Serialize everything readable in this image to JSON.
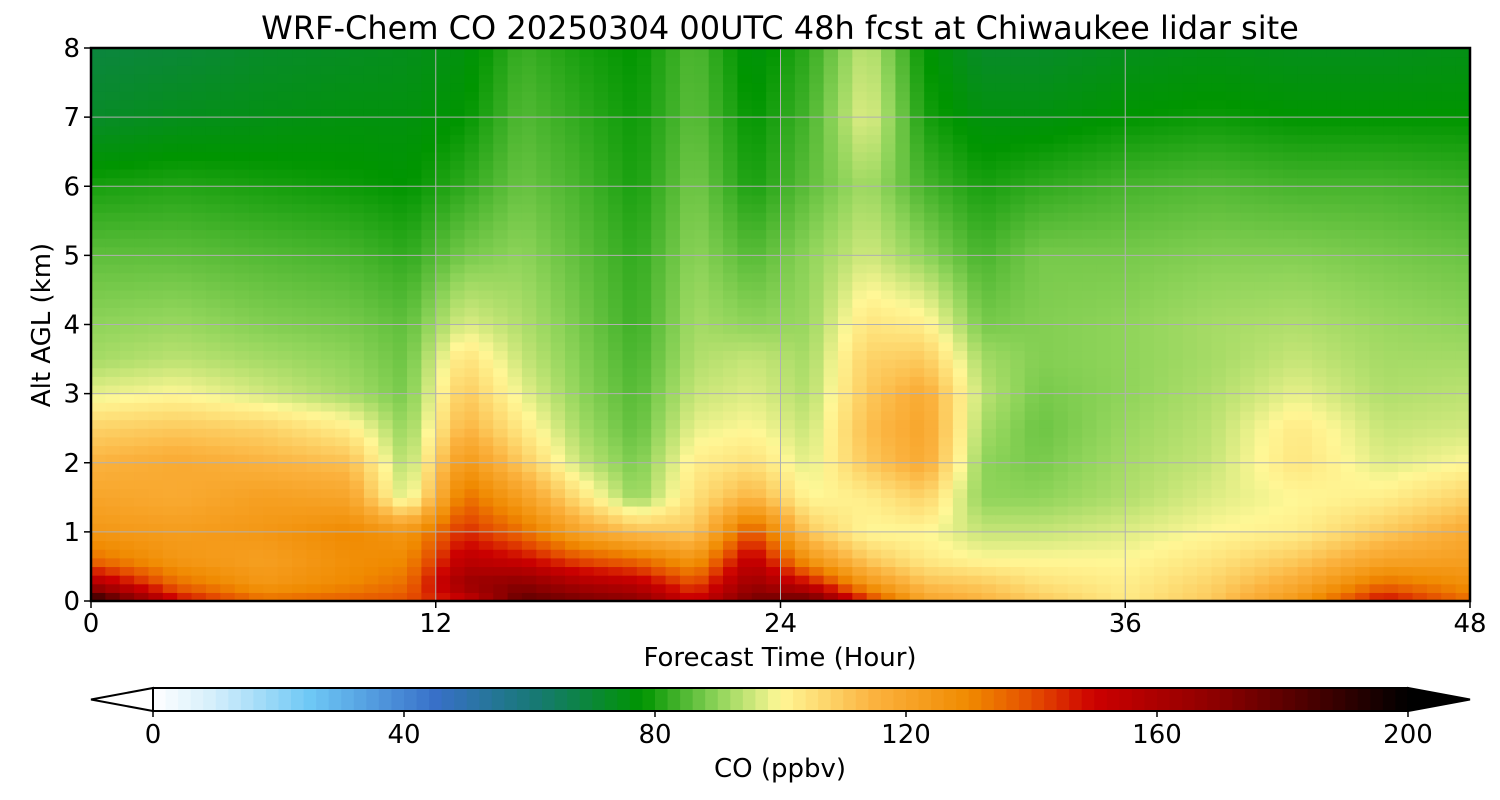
{
  "chart_data": {
    "type": "heatmap",
    "title": "WRF-Chem CO  20250304 00UTC 48h fcst at Chiwaukee lidar site",
    "xlabel": "Forecast Time (Hour)",
    "ylabel": "Alt AGL (km)",
    "xlim": [
      0,
      48
    ],
    "ylim": [
      0,
      8
    ],
    "xticks": [
      "0",
      "12",
      "24",
      "36",
      "48"
    ],
    "yticks": [
      "0",
      "1",
      "2",
      "3",
      "4",
      "5",
      "6",
      "7",
      "8"
    ],
    "grid": true,
    "x": [
      0,
      3,
      6,
      9,
      11,
      13,
      15,
      17,
      19,
      21,
      23,
      25,
      27,
      29,
      31,
      33,
      36,
      39,
      42,
      45,
      48
    ],
    "y": [
      0,
      0.25,
      0.6,
      1,
      1.5,
      2,
      2.5,
      3,
      3.5,
      4,
      5,
      6,
      7,
      8
    ],
    "z": [
      [
        195,
        150,
        135,
        138,
        140,
        150,
        180,
        175,
        170,
        150,
        175,
        180,
        145,
        120,
        115,
        110,
        103,
        110,
        125,
        150,
        135
      ],
      [
        160,
        135,
        125,
        130,
        135,
        165,
        170,
        160,
        155,
        140,
        165,
        150,
        125,
        112,
        110,
        105,
        102,
        108,
        118,
        135,
        128
      ],
      [
        135,
        125,
        122,
        128,
        130,
        155,
        150,
        140,
        135,
        125,
        155,
        125,
        110,
        103,
        100,
        100,
        100,
        104,
        110,
        120,
        122
      ],
      [
        125,
        123,
        125,
        130,
        125,
        145,
        135,
        120,
        112,
        110,
        140,
        110,
        100,
        100,
        95,
        95,
        97,
        100,
        102,
        110,
        118
      ],
      [
        120,
        118,
        122,
        120,
        95,
        135,
        122,
        105,
        90,
        105,
        115,
        100,
        102,
        108,
        90,
        90,
        93,
        97,
        100,
        102,
        108
      ],
      [
        115,
        118,
        115,
        112,
        92,
        125,
        110,
        95,
        88,
        102,
        105,
        97,
        110,
        118,
        90,
        88,
        92,
        95,
        104,
        97,
        100
      ],
      [
        108,
        110,
        108,
        102,
        90,
        115,
        103,
        92,
        86,
        98,
        100,
        95,
        112,
        120,
        92,
        87,
        91,
        94,
        103,
        95,
        96
      ],
      [
        98,
        100,
        96,
        92,
        88,
        110,
        98,
        90,
        85,
        95,
        97,
        93,
        110,
        118,
        94,
        88,
        90,
        93,
        98,
        93,
        94
      ],
      [
        92,
        94,
        92,
        90,
        87,
        105,
        95,
        89,
        84,
        93,
        95,
        92,
        108,
        110,
        92,
        89,
        90,
        92,
        95,
        92,
        92
      ],
      [
        90,
        91,
        89,
        88,
        86,
        97,
        93,
        88,
        83,
        92,
        90,
        91,
        104,
        102,
        88,
        89,
        90,
        92,
        93,
        91,
        90
      ],
      [
        86,
        86,
        85,
        84,
        82,
        88,
        90,
        86,
        82,
        90,
        85,
        90,
        96,
        90,
        84,
        88,
        88,
        89,
        89,
        88,
        87
      ],
      [
        80,
        81,
        80,
        79,
        78,
        82,
        87,
        84,
        80,
        88,
        80,
        86,
        92,
        84,
        80,
        82,
        84,
        85,
        84,
        84,
        83
      ],
      [
        72,
        74,
        75,
        76,
        76,
        78,
        85,
        82,
        79,
        86,
        78,
        84,
        98,
        80,
        76,
        76,
        78,
        79,
        78,
        78,
        78
      ],
      [
        69,
        70,
        72,
        73,
        74,
        76,
        83,
        80,
        78,
        85,
        76,
        82,
        95,
        78,
        72,
        72,
        74,
        75,
        74,
        74,
        75
      ]
    ],
    "colorbar": {
      "label": "CO  (ppbv)",
      "min": 0,
      "max": 200,
      "ticks": [
        "0",
        "40",
        "80",
        "120",
        "160",
        "200"
      ],
      "extend": "both",
      "stops": [
        {
          "v": 0,
          "c": "#ffffff"
        },
        {
          "v": 10,
          "c": "#d2eefb"
        },
        {
          "v": 25,
          "c": "#6ec8f5"
        },
        {
          "v": 45,
          "c": "#3870c8"
        },
        {
          "v": 62,
          "c": "#157a6e"
        },
        {
          "v": 78,
          "c": "#009500"
        },
        {
          "v": 90,
          "c": "#8fd45a"
        },
        {
          "v": 100,
          "c": "#fff796"
        },
        {
          "v": 115,
          "c": "#fbb23e"
        },
        {
          "v": 130,
          "c": "#f08a00"
        },
        {
          "v": 140,
          "c": "#e54e00"
        },
        {
          "v": 150,
          "c": "#cc0000"
        },
        {
          "v": 170,
          "c": "#8a0000"
        },
        {
          "v": 190,
          "c": "#300000"
        },
        {
          "v": 200,
          "c": "#000000"
        }
      ]
    }
  }
}
